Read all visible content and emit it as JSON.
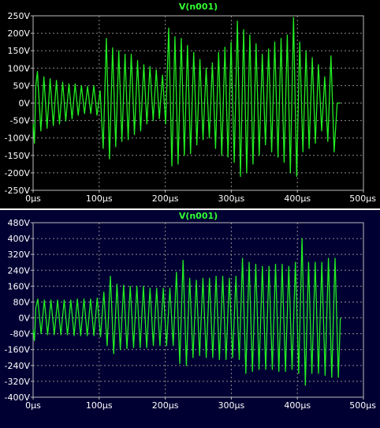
{
  "colors": {
    "trace": "#22ee22",
    "title": "#33ff33",
    "grid": "#8c8c8c",
    "frame": "#bbbbbb",
    "text": "#ffffff",
    "bg_top": "#000000",
    "bg_bottom": "#000033"
  },
  "chart_data": [
    {
      "type": "line",
      "title": "V(n001)",
      "xlabel": "",
      "ylabel": "",
      "xlim": [
        0,
        500
      ],
      "ylim": [
        -250,
        250
      ],
      "x_unit": "µs",
      "y_unit": "V",
      "x_ticks": [
        "0µs",
        "100µs",
        "200µs",
        "300µs",
        "400µs",
        "500µs"
      ],
      "y_ticks": [
        "250V",
        "200V",
        "150V",
        "100V",
        "50V",
        "0V",
        "-50V",
        "-100V",
        "-150V",
        "-200V",
        "-250V"
      ],
      "grid": true,
      "series": [
        {
          "name": "V(n001)",
          "x": [
            0,
            2,
            4,
            6.6,
            11.7,
            16.4,
            21.1,
            25.8,
            30.6,
            35.3,
            40,
            44.7,
            49.4,
            54.2,
            58.9,
            63.6,
            68.3,
            73.1,
            77.8,
            82.5,
            87.2,
            91.9,
            96.7,
            101.4,
            106.1,
            110.8,
            115.6,
            120.3,
            125,
            129.7,
            134.4,
            139.2,
            143.9,
            148.6,
            153.3,
            158.1,
            162.8,
            167.5,
            172.2,
            176.9,
            181.7,
            186.4,
            191.1,
            195.8,
            200.6,
            205.3,
            210,
            214.7,
            219.4,
            224.2,
            228.9,
            233.6,
            238.3,
            243.1,
            247.8,
            252.5,
            257.2,
            261.9,
            266.7,
            271.4,
            276.1,
            280.8,
            285.6,
            290.3,
            295,
            299.7,
            304.4,
            309.2,
            313.9,
            318.6,
            323.3,
            328.1,
            332.8,
            337.5,
            342.2,
            346.9,
            351.7,
            356.4,
            361.1,
            365.8,
            370.6,
            375.3,
            380,
            384.7,
            389.4,
            394.2,
            398.9,
            403.6,
            408.3,
            413.1,
            417.8,
            422.5,
            427.2,
            431.9,
            436.7,
            441.4,
            446.1,
            450.8,
            455.6,
            460.3,
            465
          ],
          "values": [
            -60,
            -115,
            50,
            90,
            -80,
            75,
            -72,
            70,
            -65,
            65,
            -60,
            60,
            -52,
            55,
            -45,
            55,
            -35,
            50,
            -30,
            48,
            -30,
            50,
            -35,
            35,
            -130,
            185,
            -160,
            158,
            -125,
            150,
            -110,
            140,
            -105,
            140,
            -90,
            122,
            -80,
            110,
            -60,
            105,
            -50,
            95,
            -45,
            80,
            -60,
            215,
            -180,
            190,
            -175,
            185,
            -150,
            165,
            -145,
            145,
            -120,
            125,
            -105,
            100,
            -100,
            115,
            -130,
            145,
            -150,
            160,
            -155,
            175,
            -170,
            235,
            -210,
            210,
            -200,
            195,
            -175,
            170,
            -150,
            140,
            -120,
            155,
            -140,
            175,
            -155,
            185,
            -170,
            195,
            -200,
            245,
            -210,
            175,
            -140,
            150,
            -130,
            130,
            -115,
            110,
            -80,
            75,
            -110,
            135,
            -140,
            0,
            0
          ]
        }
      ]
    },
    {
      "type": "line",
      "title": "V(n001)",
      "xlabel": "",
      "ylabel": "",
      "xlim": [
        0,
        500
      ],
      "ylim": [
        -400,
        480
      ],
      "x_unit": "µs",
      "y_unit": "V",
      "x_ticks": [
        "0µs",
        "100µs",
        "200µs",
        "300µs",
        "400µs",
        "500µs"
      ],
      "y_ticks": [
        "480V",
        "400V",
        "320V",
        "240V",
        "160V",
        "80V",
        "0V",
        "-80V",
        "-160V",
        "-240V",
        "-320V",
        "-400V"
      ],
      "grid": true,
      "series": [
        {
          "name": "V(n001)",
          "x": [
            0,
            2,
            4,
            7,
            12,
            17,
            22,
            27,
            32,
            37,
            42,
            47,
            52,
            57,
            62,
            67,
            72,
            77,
            82,
            87,
            92,
            97,
            102,
            107,
            112,
            117,
            122,
            127,
            132,
            137,
            142,
            147,
            152,
            157,
            162,
            167,
            172,
            177,
            182,
            187,
            192,
            197,
            202,
            207,
            212,
            217,
            222,
            227,
            232,
            237,
            242,
            247,
            252,
            257,
            262,
            267,
            272,
            277,
            282,
            287,
            292,
            297,
            302,
            307,
            312,
            317,
            322,
            327,
            332,
            337,
            342,
            347,
            352,
            357,
            362,
            367,
            372,
            377,
            382,
            387,
            392,
            397,
            402,
            407,
            412,
            417,
            422,
            427,
            432,
            437,
            442,
            447,
            452,
            457,
            462,
            465
          ],
          "values": [
            -60,
            -115,
            50,
            95,
            -80,
            90,
            -85,
            90,
            -85,
            90,
            -85,
            90,
            -85,
            90,
            -90,
            95,
            -90,
            95,
            -90,
            95,
            -90,
            100,
            -95,
            130,
            -140,
            210,
            -180,
            170,
            -160,
            165,
            -155,
            160,
            -150,
            160,
            -150,
            160,
            -150,
            150,
            -140,
            150,
            -140,
            150,
            -140,
            150,
            -140,
            230,
            -230,
            290,
            -240,
            200,
            -200,
            190,
            -190,
            200,
            -200,
            200,
            -200,
            210,
            -210,
            210,
            -210,
            200,
            -200,
            210,
            -210,
            300,
            -280,
            280,
            -270,
            270,
            -260,
            260,
            -260,
            260,
            -260,
            270,
            -270,
            270,
            -270,
            260,
            -260,
            280,
            -280,
            400,
            -340,
            280,
            -280,
            280,
            -280,
            280,
            -290,
            300,
            -300,
            300,
            -300,
            0
          ]
        }
      ]
    }
  ]
}
